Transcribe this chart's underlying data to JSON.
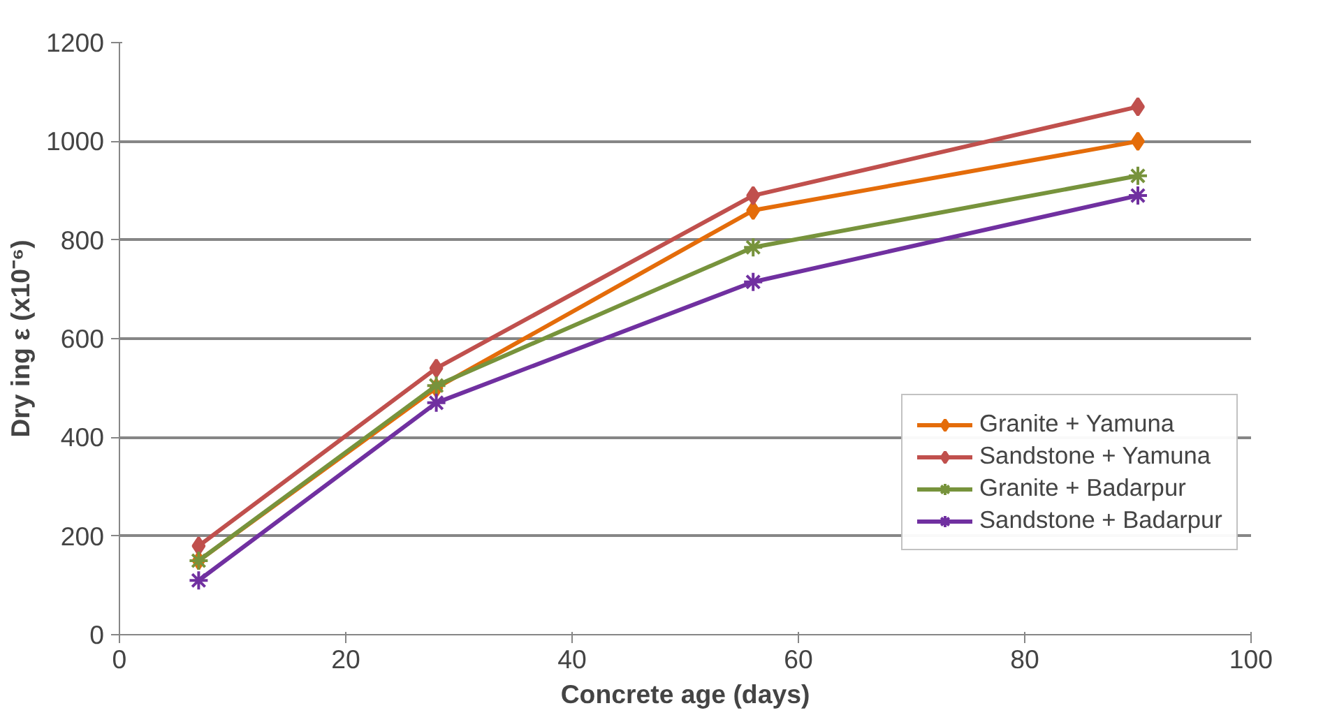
{
  "chart_data": {
    "type": "line",
    "xlabel": "Concrete age (days)",
    "ylabel": "Dry ing ε (x10⁻⁶)",
    "x": [
      7,
      28,
      56,
      90
    ],
    "series": [
      {
        "name": "Granite + Yamuna",
        "color": "#e46c0a",
        "marker": "diamond",
        "values": [
          150,
          500,
          860,
          1000
        ]
      },
      {
        "name": "Sandstone + Yamuna",
        "color": "#c0504d",
        "marker": "diamond",
        "values": [
          180,
          540,
          890,
          1070
        ]
      },
      {
        "name": "Granite + Badarpur",
        "color": "#77933c",
        "marker": "cross",
        "values": [
          150,
          505,
          785,
          930
        ]
      },
      {
        "name": "Sandstone + Badarpur",
        "color": "#7030a0",
        "marker": "cross",
        "values": [
          110,
          470,
          715,
          890
        ]
      }
    ],
    "xlim": [
      0,
      100
    ],
    "xticks": [
      0,
      20,
      40,
      60,
      80,
      100
    ],
    "ylim": [
      0,
      1200
    ],
    "yticks": [
      0,
      200,
      400,
      600,
      800,
      1000,
      1200
    ],
    "grid": "y",
    "legend": "right",
    "line_style": "solid"
  }
}
